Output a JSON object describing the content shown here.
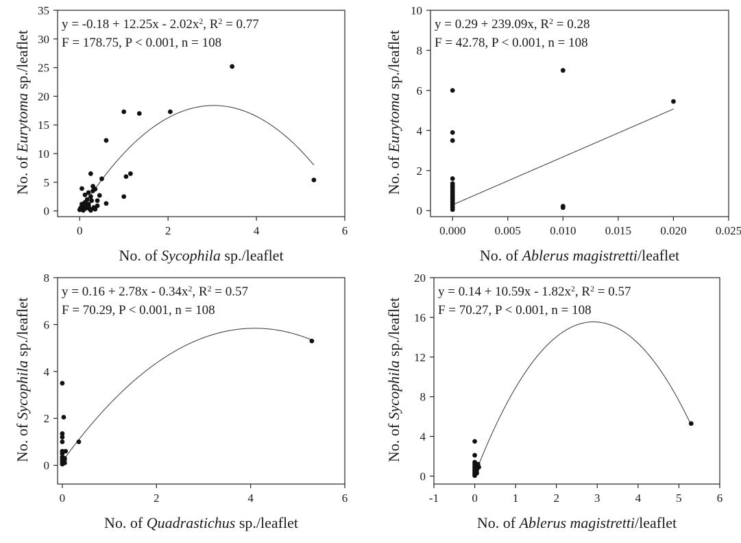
{
  "chart_data": [
    {
      "type": "scatter",
      "xlabel": {
        "pre": "No. of ",
        "italic": "Sycophila",
        "post": " sp./leaflet"
      },
      "ylabel": {
        "pre": "No. of ",
        "italic": "Eurytoma",
        "post": " sp./leaflet"
      },
      "annotation": [
        [
          {
            "t": "y = -0.18 + 12.25x - 2.02x"
          },
          {
            "t": "2",
            "sup": true
          },
          {
            "t": ", R"
          },
          {
            "t": "2",
            "sup": true
          },
          {
            "t": " = 0.77"
          }
        ],
        [
          {
            "t": "F = 178.75, P < 0.001, n = 108"
          }
        ]
      ],
      "xlim": [
        -0.5,
        6
      ],
      "ylim": [
        -1,
        35
      ],
      "xticks": [
        0,
        2,
        4,
        6
      ],
      "yticks": [
        0,
        5,
        10,
        15,
        20,
        25,
        30,
        35
      ],
      "xtick_decimals": 0,
      "points": [
        [
          0,
          0.2
        ],
        [
          0.02,
          0.5
        ],
        [
          0.05,
          0.8
        ],
        [
          0.07,
          1
        ],
        [
          0.1,
          0.3
        ],
        [
          0.12,
          1.5
        ],
        [
          0.15,
          0.8
        ],
        [
          0.17,
          2
        ],
        [
          0.2,
          1.2
        ],
        [
          0.2,
          3.2
        ],
        [
          0.22,
          0.4
        ],
        [
          0.25,
          2.5
        ],
        [
          0.25,
          6.5
        ],
        [
          0.27,
          1.8
        ],
        [
          0.3,
          3.5
        ],
        [
          0.3,
          4.3
        ],
        [
          0.32,
          0.6
        ],
        [
          0.35,
          3.8
        ],
        [
          0.4,
          1.8
        ],
        [
          0.45,
          2.7
        ],
        [
          0.5,
          5.6
        ],
        [
          0.6,
          12.3
        ],
        [
          0.6,
          1.3
        ],
        [
          1.0,
          2.5
        ],
        [
          1.0,
          17.3
        ],
        [
          1.05,
          6
        ],
        [
          1.15,
          6.5
        ],
        [
          1.35,
          17
        ],
        [
          2.05,
          17.3
        ],
        [
          3.45,
          25.2
        ],
        [
          5.3,
          5.4
        ],
        [
          0.05,
          3.9
        ],
        [
          0.1,
          0.8
        ],
        [
          0.15,
          0.5
        ],
        [
          0.08,
          0.1
        ],
        [
          0.2,
          0.9
        ],
        [
          0.25,
          0.1
        ],
        [
          0.35,
          0.3
        ],
        [
          0.4,
          0.9
        ],
        [
          0.05,
          1.2
        ],
        [
          0.12,
          2.8
        ]
      ],
      "fit": {
        "kind": "poly",
        "coef": [
          -0.18,
          12.25,
          -2.02
        ],
        "from": 0,
        "to": 5.3
      }
    },
    {
      "type": "scatter",
      "xlabel": {
        "pre": "No. of ",
        "italic": "Ablerus magistretti",
        "post": "/leaflet"
      },
      "ylabel": {
        "pre": "No. of ",
        "italic": "Eurytoma",
        "post": " sp./leaflet"
      },
      "annotation": [
        [
          {
            "t": "y = 0.29 + 239.09x, R"
          },
          {
            "t": "2",
            "sup": true
          },
          {
            "t": " = 0.28"
          }
        ],
        [
          {
            "t": "F = 42.78, P < 0.001, n = 108"
          }
        ]
      ],
      "xlim": [
        -0.002,
        0.025
      ],
      "ylim": [
        -0.3,
        10
      ],
      "xticks": [
        0,
        0.005,
        0.01,
        0.015,
        0.02,
        0.025
      ],
      "yticks": [
        0,
        2,
        4,
        6,
        8,
        10
      ],
      "xtick_decimals": 3,
      "points": [
        [
          0,
          0.05
        ],
        [
          0,
          0.15
        ],
        [
          0,
          0.25
        ],
        [
          0,
          0.35
        ],
        [
          0,
          0.45
        ],
        [
          0,
          0.55
        ],
        [
          0,
          0.65
        ],
        [
          0,
          0.75
        ],
        [
          0,
          0.85
        ],
        [
          0,
          0.95
        ],
        [
          0,
          1.05
        ],
        [
          0,
          1.15
        ],
        [
          0,
          1.25
        ],
        [
          0,
          1.35
        ],
        [
          0,
          1.6
        ],
        [
          0,
          3.5
        ],
        [
          0,
          3.9
        ],
        [
          0,
          6
        ],
        [
          0.01,
          0.15
        ],
        [
          0.01,
          0.22
        ],
        [
          0.01,
          7
        ],
        [
          0.02,
          5.45
        ]
      ],
      "fit": {
        "kind": "poly",
        "coef": [
          0.29,
          239.09
        ],
        "from": 0,
        "to": 0.02
      }
    },
    {
      "type": "scatter",
      "xlabel": {
        "pre": "No. of ",
        "italic": "Quadrastichus",
        "post": " sp./leaflet"
      },
      "ylabel": {
        "pre": "No. of ",
        "italic": "Sycophila",
        "post": " sp./leaflet"
      },
      "annotation": [
        [
          {
            "t": "y = 0.16 + 2.78x - 0.34x"
          },
          {
            "t": "2",
            "sup": true
          },
          {
            "t": ", R"
          },
          {
            "t": "2",
            "sup": true
          },
          {
            "t": " =  0.57"
          }
        ],
        [
          {
            "t": "F = 70.29, P < 0.001, n = 108"
          }
        ]
      ],
      "xlim": [
        -0.1,
        6
      ],
      "ylim": [
        -0.8,
        8
      ],
      "xticks": [
        0,
        2,
        4,
        6
      ],
      "yticks": [
        0,
        2,
        4,
        6,
        8
      ],
      "xtick_decimals": 0,
      "points": [
        [
          0,
          0.05
        ],
        [
          0,
          0.15
        ],
        [
          0,
          0.25
        ],
        [
          0,
          0.35
        ],
        [
          0,
          0.5
        ],
        [
          0,
          0.6
        ],
        [
          0,
          1.0
        ],
        [
          0,
          1.2
        ],
        [
          0,
          1.35
        ],
        [
          0,
          3.5
        ],
        [
          0.03,
          2.05
        ],
        [
          0.05,
          0.1
        ],
        [
          0.05,
          0.3
        ],
        [
          0.07,
          0.6
        ],
        [
          0.05,
          0.25
        ],
        [
          0.35,
          1.0
        ],
        [
          5.3,
          5.3
        ]
      ],
      "fit": {
        "kind": "poly",
        "coef": [
          0.16,
          2.78,
          -0.34
        ],
        "from": 0,
        "to": 5.3
      }
    },
    {
      "type": "scatter",
      "xlabel": {
        "pre": "No. of ",
        "italic": "Ablerus magistretti",
        "post": "/leaflet"
      },
      "ylabel": {
        "pre": "No. of ",
        "italic": "Sycophila",
        "post": " sp./leaflet"
      },
      "annotation": [
        [
          {
            "t": "y = 0.14 + 10.59x - 1.82x"
          },
          {
            "t": "2",
            "sup": true
          },
          {
            "t": ", R"
          },
          {
            "t": "2",
            "sup": true
          },
          {
            "t": " = 0.57"
          }
        ],
        [
          {
            "t": "F = 70.27, P < 0.001, n = 108"
          }
        ]
      ],
      "xlim": [
        -1,
        6
      ],
      "ylim": [
        -0.8,
        20
      ],
      "xticks": [
        -1,
        0,
        1,
        2,
        3,
        4,
        5,
        6
      ],
      "yticks": [
        0,
        4,
        8,
        12,
        16,
        20
      ],
      "xtick_decimals": 0,
      "points": [
        [
          0,
          0.05
        ],
        [
          0,
          0.2
        ],
        [
          0,
          0.35
        ],
        [
          0,
          0.5
        ],
        [
          0,
          0.65
        ],
        [
          0,
          0.8
        ],
        [
          0,
          1.0
        ],
        [
          0,
          1.2
        ],
        [
          0,
          1.4
        ],
        [
          0,
          2.1
        ],
        [
          0,
          3.5
        ],
        [
          0.05,
          0.3
        ],
        [
          0.05,
          0.6
        ],
        [
          0.05,
          0.9
        ],
        [
          0.08,
          1.2
        ],
        [
          0.1,
          0.9
        ],
        [
          5.3,
          5.3
        ]
      ],
      "fit": {
        "kind": "poly",
        "coef": [
          0.14,
          10.59,
          -1.82
        ],
        "from": 0,
        "to": 5.3
      }
    }
  ]
}
